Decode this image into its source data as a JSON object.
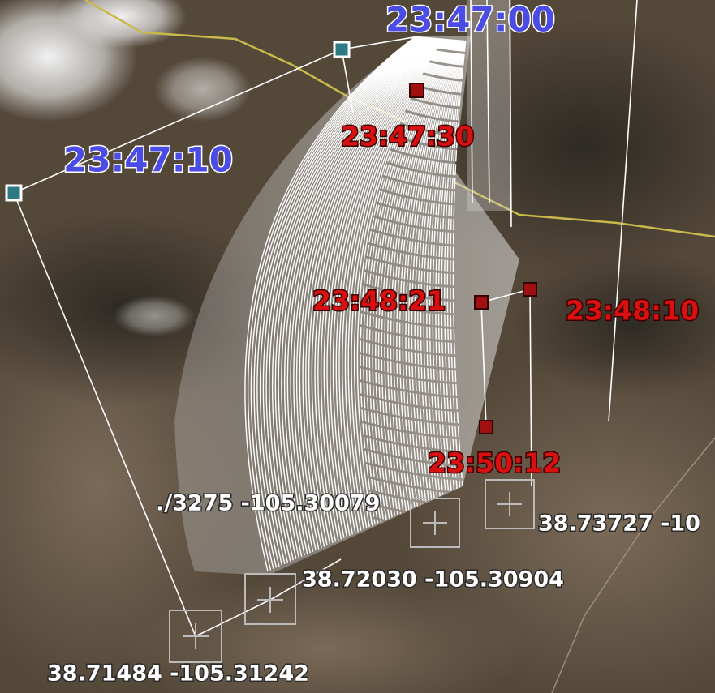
{
  "time_labels": [
    "23:47:00",
    "23:47:10",
    "23:47:30",
    "23:48:21",
    "23:48:10",
    "23:50:12"
  ],
  "coordinate_labels": [
    "./3275 -105.30079",
    "38.73727 -10",
    "38.72030 -105.30904",
    "38.71484 -105.31242"
  ]
}
